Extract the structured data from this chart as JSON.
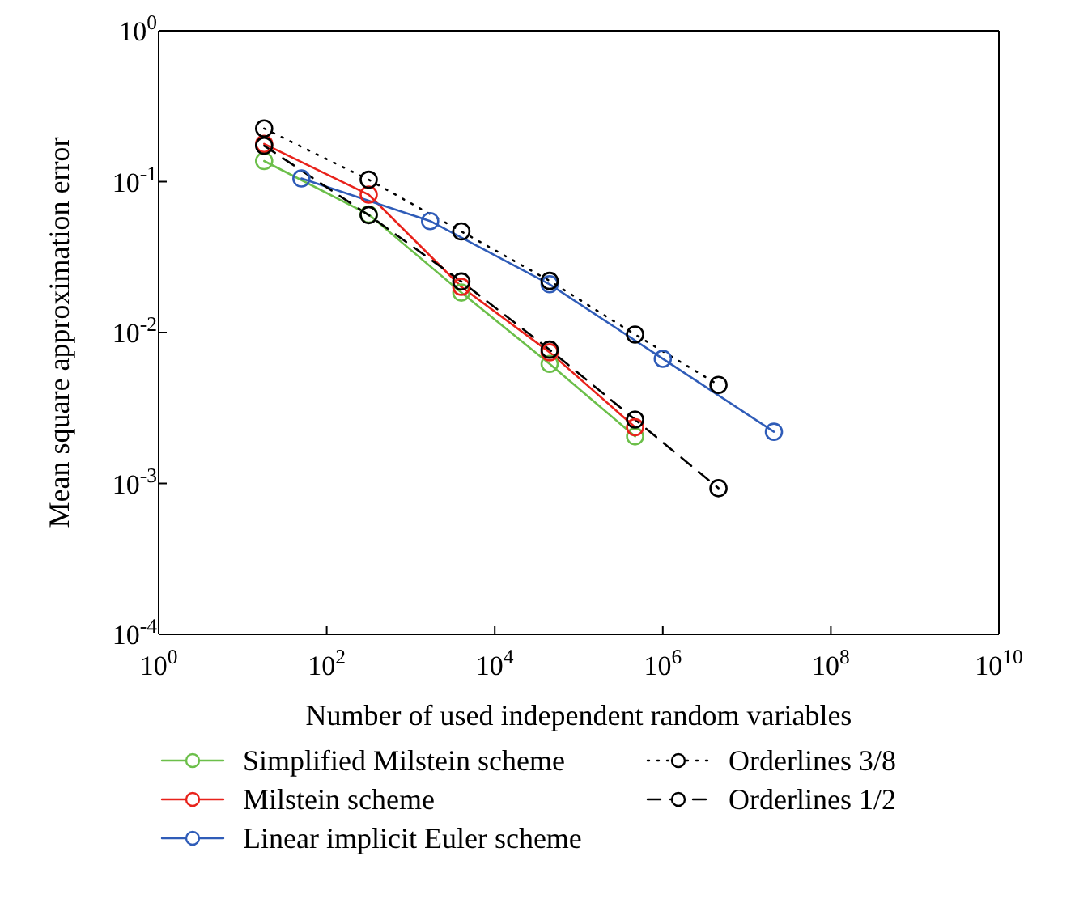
{
  "chart_data": {
    "type": "line",
    "xlabel": "Number of used independent random variables",
    "ylabel": "Mean square approximation error",
    "log": "xy",
    "legend": "bottom",
    "marker": "circle",
    "xlim": [
      1,
      10000000000
    ],
    "ylim": [
      0.0001,
      1
    ],
    "xticks": [
      {
        "value": 1,
        "label": "10$^{0}$"
      },
      {
        "value": 100,
        "label": "10$^{2}$"
      },
      {
        "value": 10000,
        "label": "10$^{4}$"
      },
      {
        "value": 1000000,
        "label": "10$^{6}$"
      },
      {
        "value": 100000000,
        "label": "10$^{8}$"
      },
      {
        "value": 10000000000,
        "label": "10$^{10}$"
      }
    ],
    "yticks": [
      {
        "value": 0.0001,
        "label": "10$^{-4}$"
      },
      {
        "value": 0.001,
        "label": "10$^{-3}$"
      },
      {
        "value": 0.01,
        "label": "10$^{-2}$"
      },
      {
        "value": 0.1,
        "label": "10$^{-1}$"
      },
      {
        "value": 1,
        "label": "10$^{0}$"
      }
    ],
    "series": [
      {
        "name": "Simplified Milstein scheme",
        "color": "#6cbf4a",
        "line_style": "solid",
        "x": [
          18,
          316,
          4000,
          45000,
          468000
        ],
        "values": [
          0.137,
          0.0606,
          0.0184,
          0.0062,
          0.00205
        ]
      },
      {
        "name": "Milstein scheme",
        "color": "#e8221b",
        "line_style": "solid",
        "x": [
          18,
          316,
          4000,
          45000,
          468000
        ],
        "values": [
          0.178,
          0.082,
          0.0201,
          0.0074,
          0.00236
        ]
      },
      {
        "name": "Linear implicit Euler scheme",
        "color": "#2f5cb8",
        "line_style": "solid",
        "x": [
          50,
          1700,
          45000,
          1000000,
          21000000
        ],
        "values": [
          0.105,
          0.0548,
          0.0209,
          0.0067,
          0.0022
        ]
      },
      {
        "name": "Orderlines 3/8",
        "color": "#000000",
        "line_style": "dotted",
        "x": [
          18,
          316,
          4000,
          45000,
          468000,
          4600000
        ],
        "values": [
          0.225,
          0.103,
          0.0468,
          0.022,
          0.0097,
          0.0045
        ]
      },
      {
        "name": "Orderlines 1/2",
        "color": "#000000",
        "line_style": "dashed",
        "x": [
          18,
          316,
          4000,
          45000,
          468000,
          4600000
        ],
        "values": [
          0.173,
          0.06,
          0.0218,
          0.0077,
          0.00265,
          0.00093
        ]
      }
    ]
  }
}
